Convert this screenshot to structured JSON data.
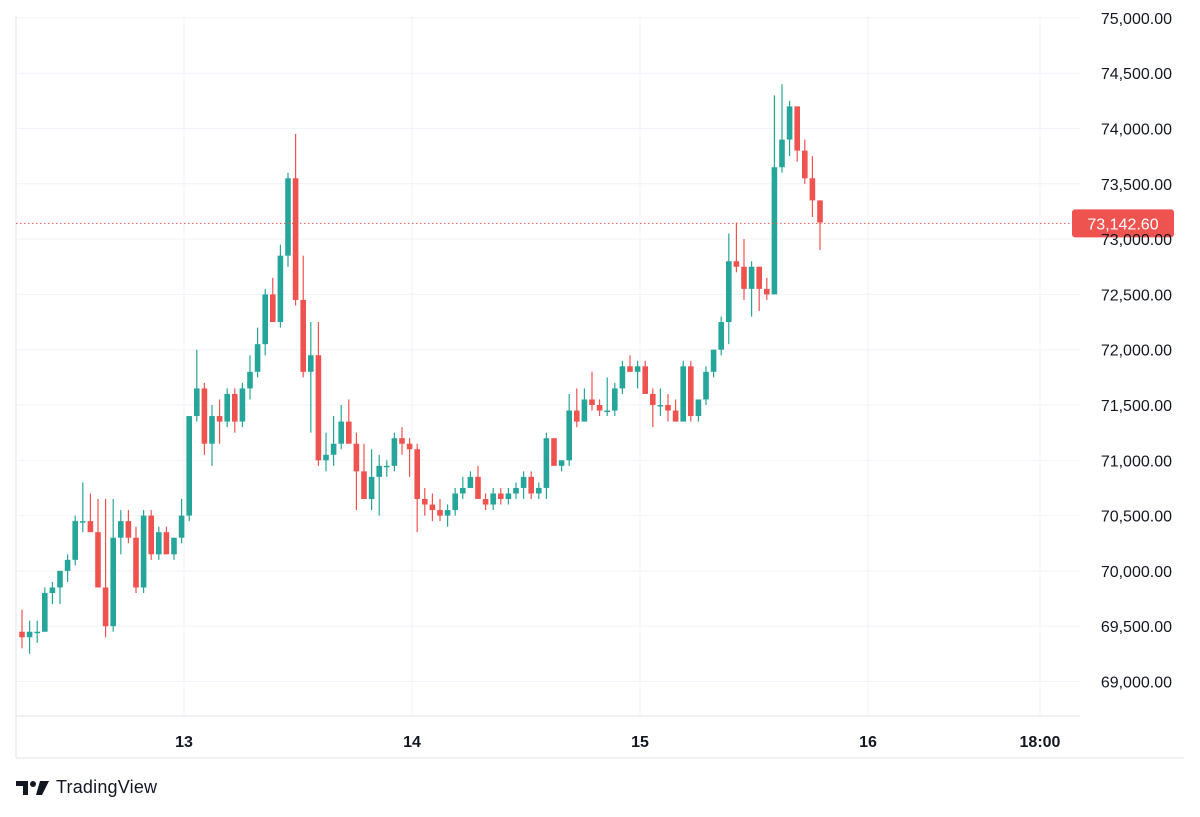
{
  "chart_data": {
    "type": "candlestick",
    "y_ticks": [
      "75,000.00",
      "74,500.00",
      "74,000.00",
      "73,500.00",
      "73,000.00",
      "72,500.00",
      "72,000.00",
      "71,500.00",
      "71,000.00",
      "70,500.00",
      "70,000.00",
      "69,500.00",
      "69,000.00"
    ],
    "x_ticks": [
      "13",
      "14",
      "15",
      "16",
      "18:00"
    ],
    "ylim": [
      68700,
      75000
    ],
    "grid": true,
    "last_price": 73142.6,
    "last_price_label": "73,142.60",
    "colors": {
      "up": "#26a69a",
      "down": "#ef5350",
      "grid": "#f0f3fa",
      "last_line": "#ef5350"
    },
    "candles": [
      [
        69450,
        69650,
        69300,
        69400
      ],
      [
        69400,
        69550,
        69250,
        69450
      ],
      [
        69450,
        69550,
        69350,
        69450
      ],
      [
        69450,
        69850,
        69450,
        69800
      ],
      [
        69800,
        69900,
        69700,
        69850
      ],
      [
        69850,
        70000,
        69700,
        70000
      ],
      [
        70000,
        70150,
        69900,
        70100
      ],
      [
        70100,
        70500,
        70050,
        70450
      ],
      [
        70450,
        70800,
        70350,
        70450
      ],
      [
        70450,
        70700,
        70350,
        70350
      ],
      [
        70350,
        70650,
        69850,
        69850
      ],
      [
        69850,
        70650,
        69400,
        69500
      ],
      [
        69500,
        70650,
        69450,
        70300
      ],
      [
        70300,
        70550,
        70150,
        70450
      ],
      [
        70450,
        70550,
        70250,
        70300
      ],
      [
        70300,
        70400,
        69800,
        69850
      ],
      [
        69850,
        70550,
        69800,
        70500
      ],
      [
        70500,
        70550,
        70100,
        70150
      ],
      [
        70150,
        70400,
        70100,
        70350
      ],
      [
        70350,
        70400,
        70150,
        70150
      ],
      [
        70150,
        70300,
        70100,
        70300
      ],
      [
        70300,
        70650,
        70250,
        70500
      ],
      [
        70500,
        71400,
        70450,
        71400
      ],
      [
        71400,
        72000,
        71350,
        71650
      ],
      [
        71650,
        71700,
        71050,
        71150
      ],
      [
        71150,
        71500,
        70950,
        71400
      ],
      [
        71400,
        71550,
        71150,
        71350
      ],
      [
        71350,
        71650,
        71300,
        71600
      ],
      [
        71600,
        71650,
        71250,
        71350
      ],
      [
        71350,
        71700,
        71300,
        71650
      ],
      [
        71650,
        71950,
        71550,
        71800
      ],
      [
        71800,
        72200,
        71750,
        72050
      ],
      [
        72050,
        72550,
        71950,
        72500
      ],
      [
        72500,
        72650,
        72250,
        72250
      ],
      [
        72250,
        72950,
        72200,
        72850
      ],
      [
        72850,
        73600,
        72750,
        73550
      ],
      [
        73550,
        73950,
        72400,
        72450
      ],
      [
        72450,
        72850,
        71750,
        71800
      ],
      [
        71800,
        72250,
        71250,
        71950
      ],
      [
        71950,
        72250,
        70950,
        71000
      ],
      [
        71000,
        71250,
        70900,
        71050
      ],
      [
        71050,
        71400,
        70950,
        71150
      ],
      [
        71150,
        71500,
        71100,
        71350
      ],
      [
        71350,
        71550,
        71150,
        71150
      ],
      [
        71150,
        71250,
        70550,
        70900
      ],
      [
        70900,
        71150,
        70650,
        70650
      ],
      [
        70650,
        71100,
        70550,
        70850
      ],
      [
        70850,
        71050,
        70500,
        70950
      ],
      [
        70950,
        71000,
        70850,
        70950
      ],
      [
        70950,
        71250,
        70900,
        71200
      ],
      [
        71200,
        71300,
        71050,
        71150
      ],
      [
        71150,
        71200,
        70850,
        71100
      ],
      [
        71100,
        71150,
        70350,
        70650
      ],
      [
        70650,
        70750,
        70500,
        70600
      ],
      [
        70600,
        70700,
        70450,
        70550
      ],
      [
        70550,
        70650,
        70450,
        70500
      ],
      [
        70500,
        70600,
        70400,
        70550
      ],
      [
        70550,
        70750,
        70500,
        70700
      ],
      [
        70700,
        70850,
        70650,
        70750
      ],
      [
        70750,
        70900,
        70750,
        70850
      ],
      [
        70850,
        70950,
        70650,
        70650
      ],
      [
        70650,
        70700,
        70550,
        70600
      ],
      [
        70600,
        70750,
        70550,
        70700
      ],
      [
        70700,
        70750,
        70600,
        70650
      ],
      [
        70650,
        70750,
        70600,
        70700
      ],
      [
        70700,
        70800,
        70650,
        70750
      ],
      [
        70750,
        70900,
        70650,
        70850
      ],
      [
        70850,
        70900,
        70650,
        70700
      ],
      [
        70700,
        70800,
        70650,
        70750
      ],
      [
        70750,
        71250,
        70650,
        71200
      ],
      [
        71200,
        71200,
        70950,
        70950
      ],
      [
        70950,
        71000,
        70900,
        71000
      ],
      [
        71000,
        71600,
        70950,
        71450
      ],
      [
        71450,
        71650,
        71300,
        71350
      ],
      [
        71350,
        71650,
        71350,
        71550
      ],
      [
        71550,
        71800,
        71450,
        71500
      ],
      [
        71500,
        71550,
        71400,
        71450
      ],
      [
        71450,
        71750,
        71400,
        71450
      ],
      [
        71450,
        71700,
        71400,
        71650
      ],
      [
        71650,
        71900,
        71600,
        71850
      ],
      [
        71850,
        71950,
        71800,
        71800
      ],
      [
        71800,
        71900,
        71650,
        71850
      ],
      [
        71850,
        71900,
        71600,
        71600
      ],
      [
        71600,
        71650,
        71300,
        71500
      ],
      [
        71500,
        71650,
        71400,
        71500
      ],
      [
        71500,
        71600,
        71350,
        71450
      ],
      [
        71450,
        71550,
        71350,
        71350
      ],
      [
        71350,
        71900,
        71350,
        71850
      ],
      [
        71850,
        71900,
        71350,
        71400
      ],
      [
        71400,
        71550,
        71350,
        71550
      ],
      [
        71550,
        71850,
        71500,
        71800
      ],
      [
        71800,
        72000,
        71750,
        72000
      ],
      [
        72000,
        72300,
        71950,
        72250
      ],
      [
        72250,
        73050,
        72050,
        72800
      ],
      [
        72800,
        73150,
        72700,
        72750
      ],
      [
        72750,
        73000,
        72450,
        72550
      ],
      [
        72550,
        72800,
        72300,
        72750
      ],
      [
        72750,
        72750,
        72350,
        72550
      ],
      [
        72550,
        72650,
        72450,
        72500
      ],
      [
        72500,
        74300,
        72500,
        73650
      ],
      [
        73650,
        74400,
        73600,
        73900
      ],
      [
        73900,
        74250,
        73750,
        74200
      ],
      [
        74200,
        74150,
        73700,
        73800
      ],
      [
        73800,
        73900,
        73500,
        73550
      ],
      [
        73550,
        73750,
        73200,
        73350
      ],
      [
        73350,
        73350,
        72900,
        73150
      ]
    ]
  },
  "branding": {
    "logo_text": "TradingView"
  }
}
